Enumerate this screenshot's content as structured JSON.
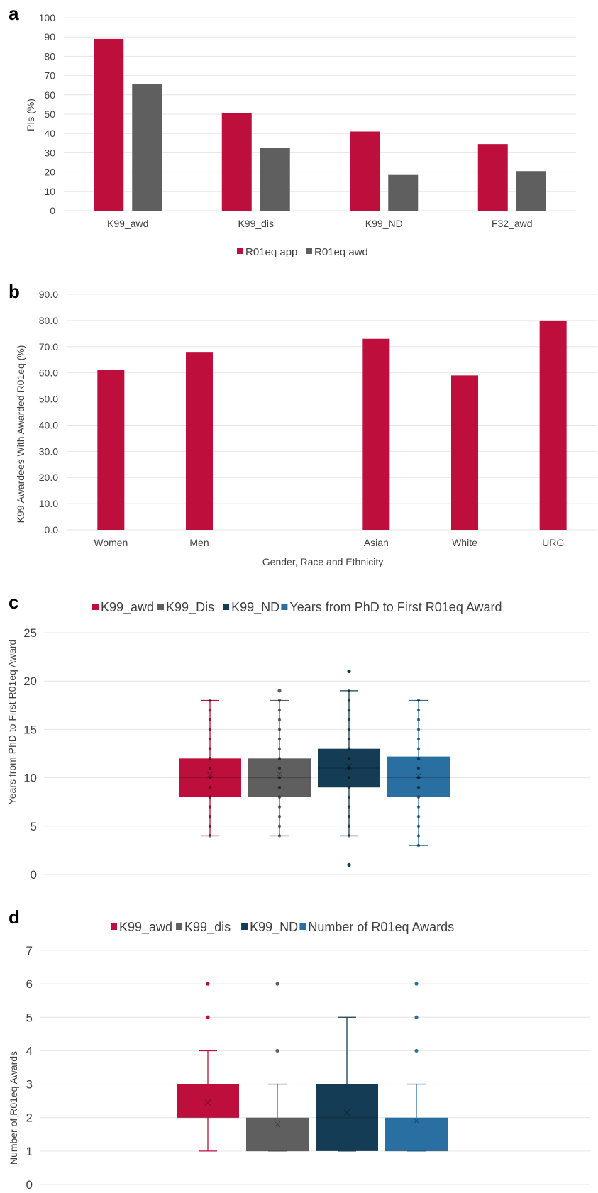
{
  "colors": {
    "crimson": "#be0f3c",
    "gray": "#5f5f5f",
    "navy": "#143c55",
    "blue": "#2a6fa1"
  },
  "chart_data": [
    {
      "panel": "a",
      "type": "bar",
      "ylabel": "PIs (%)",
      "xlabel": "",
      "ylim": [
        0,
        100
      ],
      "yticks": [
        "0",
        "10",
        "20",
        "30",
        "40",
        "50",
        "60",
        "70",
        "80",
        "90",
        "100"
      ],
      "categories": [
        "K99_awd",
        "K99_dis",
        "K99_ND",
        "F32_awd"
      ],
      "series": [
        {
          "name": "R01eq app",
          "color": "#be0f3c",
          "values": [
            89,
            50.5,
            41,
            34.5
          ]
        },
        {
          "name": "R01eq awd",
          "color": "#5f5f5f",
          "values": [
            65.5,
            32.5,
            18.5,
            20.5
          ]
        }
      ],
      "legend": "bottom",
      "grid": true
    },
    {
      "panel": "b",
      "type": "bar",
      "ylabel": "K99 Awardees With Awarded R01eq (%)",
      "xlabel": "Gender, Race and Ethnicity",
      "ylim": [
        0,
        90
      ],
      "yticks": [
        "0.0",
        "10.0",
        "20.0",
        "30.0",
        "40.0",
        "50.0",
        "60.0",
        "70.0",
        "80.0",
        "90.0"
      ],
      "categories": [
        "Women",
        "Men",
        "",
        "Asian",
        "White",
        "URG"
      ],
      "series": [
        {
          "color": "#be0f3c",
          "values": [
            61,
            68,
            null,
            73,
            59,
            80
          ]
        }
      ],
      "grid": true
    },
    {
      "panel": "c",
      "type": "box",
      "ylabel": "Years from PhD to First R01eq Award",
      "ylim": [
        0,
        25
      ],
      "yticks": [
        "0",
        "5",
        "10",
        "15",
        "20",
        "25"
      ],
      "legend": "top",
      "legend_entries": [
        "K99_awd",
        "K99_Dis",
        "K99_ND",
        "Years from PhD to First R01eq Award"
      ],
      "series": [
        {
          "name": "K99_awd",
          "color": "#be0f3c",
          "min": 4,
          "q1": 8,
          "median": 10,
          "q3": 12,
          "max": 18,
          "mean": 10.3,
          "points": [
            4,
            5,
            6,
            7,
            8,
            9,
            10,
            11,
            12,
            13,
            14,
            15,
            16,
            17,
            18
          ],
          "outliers": []
        },
        {
          "name": "K99_Dis",
          "color": "#5f5f5f",
          "min": 4,
          "q1": 8,
          "median": 10,
          "q3": 12,
          "max": 18,
          "mean": 10.4,
          "points": [
            4,
            5,
            6,
            7,
            8,
            9,
            10,
            11,
            12,
            13,
            14,
            15,
            16,
            17,
            18
          ],
          "outliers": [
            19
          ]
        },
        {
          "name": "K99_ND",
          "color": "#143c55",
          "min": 4,
          "q1": 9,
          "median": 11,
          "q3": 13,
          "max": 19,
          "mean": 11.2,
          "points": [
            4,
            5,
            6,
            7,
            8,
            9,
            10,
            11,
            12,
            13,
            14,
            15,
            16,
            17,
            18,
            19
          ],
          "outliers": [
            1,
            21
          ]
        },
        {
          "name": "Years from PhD to First R01eq Award",
          "color": "#2a6fa1",
          "min": 3,
          "q1": 8,
          "median": 10,
          "q3": 12.2,
          "max": 18,
          "mean": 10.2,
          "points": [
            3,
            4,
            5,
            6,
            7,
            8,
            9,
            10,
            11,
            12,
            13,
            14,
            15,
            16,
            17,
            18
          ],
          "outliers": []
        }
      ],
      "grid": true
    },
    {
      "panel": "d",
      "type": "box",
      "ylabel": "Number of R01eq Awards",
      "ylim": [
        0,
        7
      ],
      "yticks": [
        "0",
        "1",
        "2",
        "3",
        "4",
        "5",
        "6",
        "7"
      ],
      "legend": "top",
      "legend_entries": [
        "K99_awd",
        "K99_dis",
        "K99_ND",
        "Number of R01eq Awards"
      ],
      "series": [
        {
          "name": "K99_awd",
          "color": "#be0f3c",
          "min": 1,
          "q1": 2,
          "median": 2,
          "q3": 3,
          "max": 4,
          "mean": 2.45,
          "outliers": [
            5,
            6
          ]
        },
        {
          "name": "K99_dis",
          "color": "#5f5f5f",
          "min": 1,
          "q1": 1,
          "median": 1,
          "q3": 2,
          "max": 3,
          "mean": 1.8,
          "outliers": [
            4,
            6
          ]
        },
        {
          "name": "K99_ND",
          "color": "#143c55",
          "min": 1,
          "q1": 1,
          "median": 2,
          "q3": 3,
          "max": 5,
          "mean": 2.15,
          "outliers": []
        },
        {
          "name": "Number of R01eq Awards",
          "color": "#2a6fa1",
          "min": 1,
          "q1": 1,
          "median": 1,
          "q3": 2,
          "max": 3,
          "mean": 1.9,
          "outliers": [
            4,
            5,
            6
          ]
        }
      ],
      "grid": true
    }
  ],
  "panels": [
    "a",
    "b",
    "c",
    "d"
  ]
}
